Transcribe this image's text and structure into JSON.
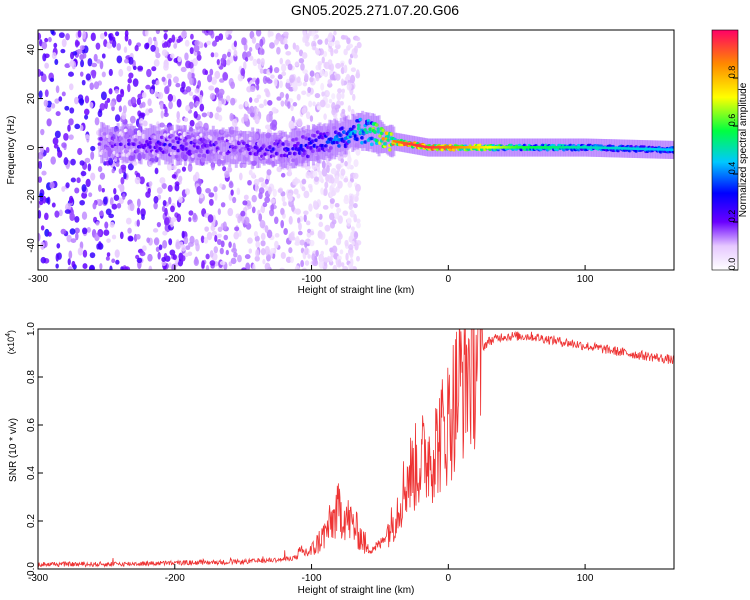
{
  "page": {
    "title": "GN05.2025.271.07.20.G06"
  },
  "chart_data": [
    {
      "type": "heatmap",
      "title": "GN05.2025.271.07.20.G06",
      "xlabel": "Height of straight line (km)",
      "ylabel": "Frequency (Hz)",
      "xlim": [
        -300,
        165
      ],
      "ylim": [
        -50,
        48
      ],
      "x_ticks": [
        -300,
        -200,
        -100,
        0,
        100
      ],
      "x_tick_labels": [
        "-300",
        "-200",
        "-100",
        "0",
        "100"
      ],
      "y_ticks": [
        -40,
        -20,
        0,
        20,
        40
      ],
      "y_tick_labels": [
        "-40",
        "-20",
        "0",
        "20",
        "40"
      ],
      "colorbar": {
        "label": "Normalized spectral amplitude",
        "range": [
          0,
          1
        ],
        "ticks": [
          0,
          0.2,
          0.4,
          0.6,
          0.8
        ],
        "tick_labels": [
          "0.0",
          "0.2",
          "0.4",
          "0.6",
          "0.8"
        ]
      },
      "ridge": {
        "height_km": [
          -250,
          -200,
          -150,
          -120,
          -100,
          -80,
          -65,
          -55,
          -45,
          -35,
          -25,
          -15,
          0,
          50,
          100,
          165
        ],
        "frequency_hz": [
          2,
          1,
          0,
          -1,
          1,
          4,
          7,
          6,
          3,
          2,
          1,
          0,
          0,
          0,
          0,
          -1
        ],
        "amplitude": [
          0.25,
          0.3,
          0.25,
          0.3,
          0.35,
          0.45,
          0.55,
          0.7,
          0.85,
          0.9,
          0.95,
          0.95,
          0.9,
          0.6,
          0.5,
          0.45
        ]
      }
    },
    {
      "type": "line",
      "xlabel": "Height of straight line (km)",
      "ylabel": "SNR (10 * v/v)",
      "y_multiplier_label": "(x10",
      "y_multiplier_exp": "4",
      "y_multiplier_close": ")",
      "xlim": [
        -300,
        165
      ],
      "ylim": [
        0,
        1
      ],
      "x_ticks": [
        -300,
        -200,
        -100,
        0,
        100
      ],
      "x_tick_labels": [
        "-300",
        "-200",
        "-100",
        "0",
        "100"
      ],
      "y_ticks": [
        0,
        0.2,
        0.4,
        0.6,
        0.8,
        1.0
      ],
      "y_tick_labels": [
        "0.0",
        "0.2",
        "0.4",
        "0.6",
        "0.8",
        "1.0"
      ],
      "series": [
        {
          "name": "SNR",
          "color": "#ee3333",
          "x": [
            -300,
            -250,
            -200,
            -150,
            -120,
            -100,
            -90,
            -80,
            -70,
            -60,
            -50,
            -40,
            -30,
            -20,
            -10,
            0,
            10,
            20,
            30,
            40,
            60,
            80,
            100,
            130,
            165
          ],
          "y": [
            0.02,
            0.02,
            0.025,
            0.03,
            0.04,
            0.06,
            0.12,
            0.2,
            0.15,
            0.08,
            0.1,
            0.2,
            0.38,
            0.45,
            0.5,
            0.62,
            0.8,
            0.9,
            0.95,
            0.97,
            0.97,
            0.95,
            0.93,
            0.9,
            0.87
          ]
        }
      ]
    }
  ]
}
